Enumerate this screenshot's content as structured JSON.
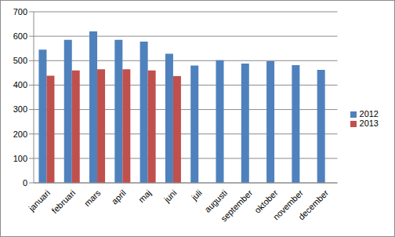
{
  "chart_data": {
    "type": "bar",
    "categories": [
      "januari",
      "februari",
      "mars",
      "april",
      "maj",
      "juni",
      "juli",
      "augusti",
      "september",
      "oktober",
      "november",
      "december"
    ],
    "series": [
      {
        "name": "2012",
        "color": "#4f81bd",
        "values": [
          545,
          585,
          620,
          585,
          578,
          528,
          480,
          502,
          488,
          498,
          482,
          462
        ]
      },
      {
        "name": "2013",
        "color": "#c0504d",
        "values": [
          438,
          460,
          465,
          465,
          460,
          437,
          null,
          null,
          null,
          null,
          null,
          null
        ]
      }
    ],
    "ylim": [
      0,
      700
    ],
    "yticks": [
      0,
      100,
      200,
      300,
      400,
      500,
      600,
      700
    ],
    "grid": true,
    "legend": "right"
  }
}
